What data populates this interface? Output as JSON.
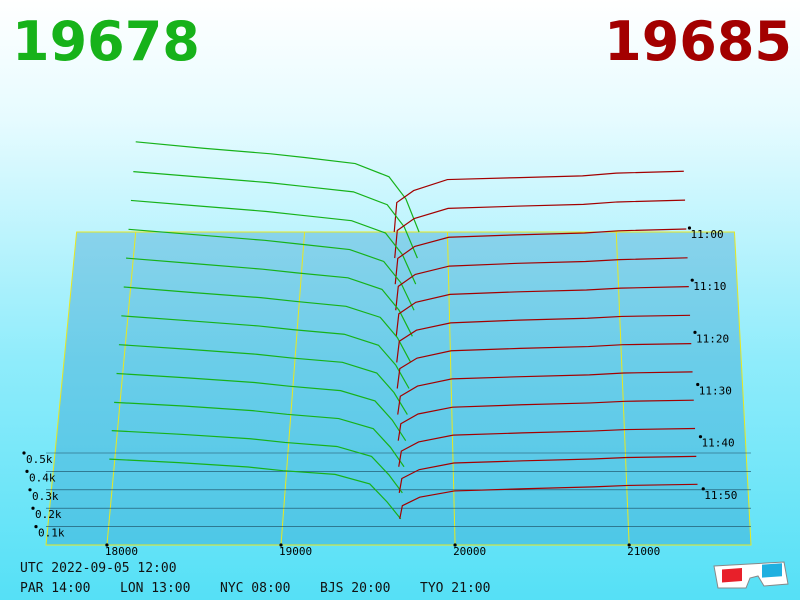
{
  "chart_data": {
    "type": "depth3d",
    "best_bid": 19678,
    "best_ask": 19685,
    "bid_color": "#17b21a",
    "ask_color": "#a30000",
    "xlim": [
      17650,
      21700
    ],
    "xticks": [
      18000,
      19000,
      20000,
      21000
    ],
    "zlim": [
      0,
      500
    ],
    "zticks": [
      {
        "value": 100,
        "label": "0.1k"
      },
      {
        "value": 200,
        "label": "0.2k"
      },
      {
        "value": 300,
        "label": "0.3k"
      },
      {
        "value": 400,
        "label": "0.4k"
      },
      {
        "value": 500,
        "label": "0.5k"
      }
    ],
    "tlim": [
      "11:00",
      "12:00"
    ],
    "tticks": [
      "11:00",
      "11:10",
      "11:20",
      "11:30",
      "11:40",
      "11:50"
    ],
    "bid_prices": [
      18000,
      18400,
      18800,
      19000,
      19300,
      19500,
      19600,
      19678
    ],
    "ask_prices": [
      19685,
      19700,
      19800,
      20000,
      20400,
      20800,
      21000,
      21400
    ],
    "snapshots": [
      {
        "time": "11:00",
        "bid": [
          490,
          455,
          425,
          405,
          372,
          300,
          180,
          0
        ],
        "ask": [
          0,
          160,
          225,
          285,
          295,
          305,
          320,
          330
        ]
      },
      {
        "time": "11:05",
        "bid": [
          470,
          440,
          410,
          390,
          360,
          290,
          170,
          0
        ],
        "ask": [
          0,
          150,
          215,
          270,
          282,
          292,
          305,
          315
        ]
      },
      {
        "time": "11:10",
        "bid": [
          455,
          425,
          395,
          375,
          345,
          278,
          160,
          0
        ],
        "ask": [
          0,
          140,
          205,
          255,
          268,
          278,
          290,
          300
        ]
      },
      {
        "time": "11:15",
        "bid": [
          440,
          410,
          380,
          360,
          330,
          265,
          150,
          0
        ],
        "ask": [
          0,
          130,
          195,
          240,
          255,
          265,
          275,
          285
        ]
      },
      {
        "time": "11:20",
        "bid": [
          425,
          395,
          365,
          345,
          318,
          255,
          142,
          0
        ],
        "ask": [
          0,
          122,
          185,
          228,
          242,
          252,
          262,
          270
        ]
      },
      {
        "time": "11:25",
        "bid": [
          410,
          380,
          352,
          332,
          305,
          245,
          135,
          0
        ],
        "ask": [
          0,
          115,
          175,
          215,
          230,
          240,
          250,
          256
        ]
      },
      {
        "time": "11:30",
        "bid": [
          395,
          368,
          340,
          320,
          295,
          235,
          128,
          0
        ],
        "ask": [
          0,
          108,
          165,
          205,
          218,
          228,
          238,
          244
        ]
      },
      {
        "time": "11:35",
        "bid": [
          380,
          355,
          328,
          308,
          284,
          226,
          120,
          0
        ],
        "ask": [
          0,
          100,
          155,
          194,
          206,
          216,
          226,
          232
        ]
      },
      {
        "time": "11:40",
        "bid": [
          365,
          342,
          316,
          296,
          272,
          216,
          112,
          0
        ],
        "ask": [
          0,
          92,
          145,
          182,
          195,
          205,
          214,
          220
        ]
      },
      {
        "time": "11:45",
        "bid": [
          350,
          330,
          305,
          285,
          262,
          207,
          105,
          0
        ],
        "ask": [
          0,
          85,
          135,
          172,
          184,
          194,
          202,
          208
        ]
      },
      {
        "time": "11:50",
        "bid": [
          338,
          318,
          294,
          274,
          252,
          198,
          98,
          0
        ],
        "ask": [
          0,
          78,
          126,
          162,
          174,
          184,
          192,
          198
        ]
      },
      {
        "time": "11:55",
        "bid": [
          325,
          306,
          282,
          262,
          242,
          190,
          92,
          0
        ],
        "ask": [
          0,
          72,
          118,
          152,
          164,
          174,
          182,
          188
        ]
      }
    ],
    "utc": "UTC 2022-09-05 12:00",
    "clocks": [
      "PAR 14:00",
      "LON 13:00",
      "NYC 08:00",
      "BJS 20:00",
      "TYO 21:00"
    ]
  }
}
